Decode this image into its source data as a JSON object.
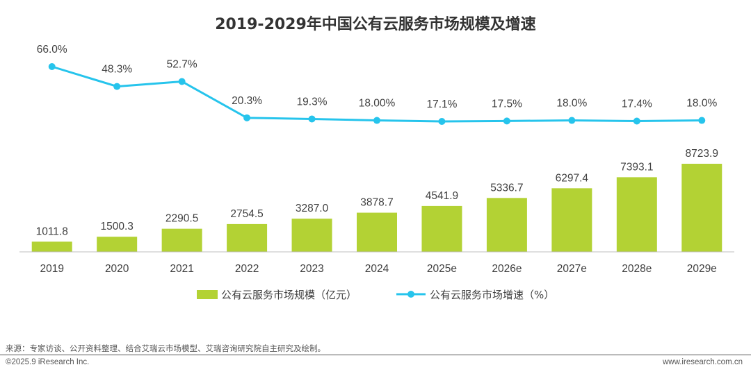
{
  "chart_data": {
    "type": "bar+line",
    "title": "2019-2029年中国公有云服务市场规模及增速",
    "categories": [
      "2019",
      "2020",
      "2021",
      "2022",
      "2023",
      "2024",
      "2025e",
      "2026e",
      "2027e",
      "2028e",
      "2029e"
    ],
    "series": [
      {
        "name": "公有云服务市场规模（亿元）",
        "type": "bar",
        "values": [
          1011.8,
          1500.3,
          2290.5,
          2754.5,
          3287.0,
          3878.7,
          4541.9,
          5336.7,
          6297.4,
          7393.1,
          8723.9
        ],
        "labels": [
          "1011.8",
          "1500.3",
          "2290.5",
          "2754.5",
          "3287.0",
          "3878.7",
          "4541.9",
          "5336.7",
          "6297.4",
          "7393.1",
          "8723.9"
        ],
        "color": "#b3d234"
      },
      {
        "name": "公有云服务市场增速（%）",
        "type": "line",
        "values": [
          66.0,
          48.3,
          52.7,
          20.3,
          19.3,
          18.0,
          17.1,
          17.5,
          18.0,
          17.4,
          18.0
        ],
        "labels": [
          "66.0%",
          "48.3%",
          "52.7%",
          "20.3%",
          "19.3%",
          "18.00%",
          "17.1%",
          "17.5%",
          "18.0%",
          "17.4%",
          "18.0%"
        ],
        "color": "#26c4ec"
      }
    ],
    "legend_position": "bottom-center",
    "grid": false
  },
  "footer": {
    "source": "来源：专家访谈、公开资料整理、结合艾瑞云市场模型、艾瑞咨询研究院自主研究及绘制。",
    "copyright": "©2025.9 iResearch Inc.",
    "website": "www.iresearch.com.cn"
  }
}
